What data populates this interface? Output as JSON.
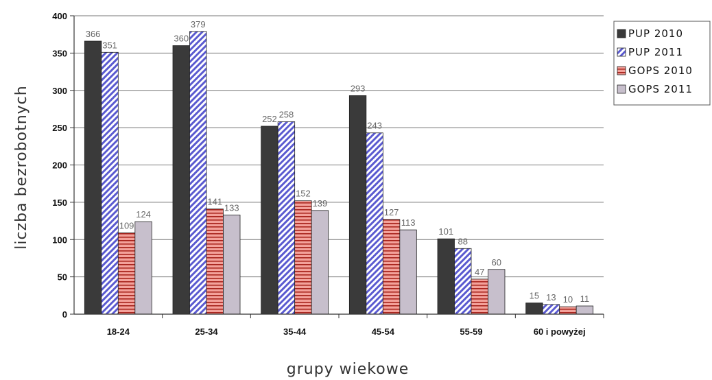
{
  "chart_data": {
    "type": "bar",
    "title": "",
    "xlabel": "grupy wiekowe",
    "ylabel": "liczba bezrobotnych",
    "categories": [
      "18-24",
      "25-34",
      "35-44",
      "45-54",
      "55-59",
      "60 i powyżej"
    ],
    "series": [
      {
        "name": "PUP 2010",
        "values": [
          366,
          360,
          252,
          293,
          101,
          15
        ],
        "color": "#3a3a3a",
        "pattern": "solid"
      },
      {
        "name": "PUP 2011",
        "values": [
          351,
          379,
          258,
          243,
          88,
          13
        ],
        "color": "#6b6bdb",
        "pattern": "diagonal"
      },
      {
        "name": "GOPS 2010",
        "values": [
          109,
          141,
          152,
          127,
          47,
          10
        ],
        "color": "#e8706a",
        "pattern": "horizontal"
      },
      {
        "name": "GOPS 2011",
        "values": [
          124,
          133,
          139,
          113,
          60,
          11
        ],
        "color": "#c7bfcc",
        "pattern": "solid"
      }
    ],
    "ylim": [
      0,
      400
    ],
    "yticks": [
      0,
      50,
      100,
      150,
      200,
      250,
      300,
      350,
      400
    ],
    "grid": true,
    "legend": "right"
  }
}
